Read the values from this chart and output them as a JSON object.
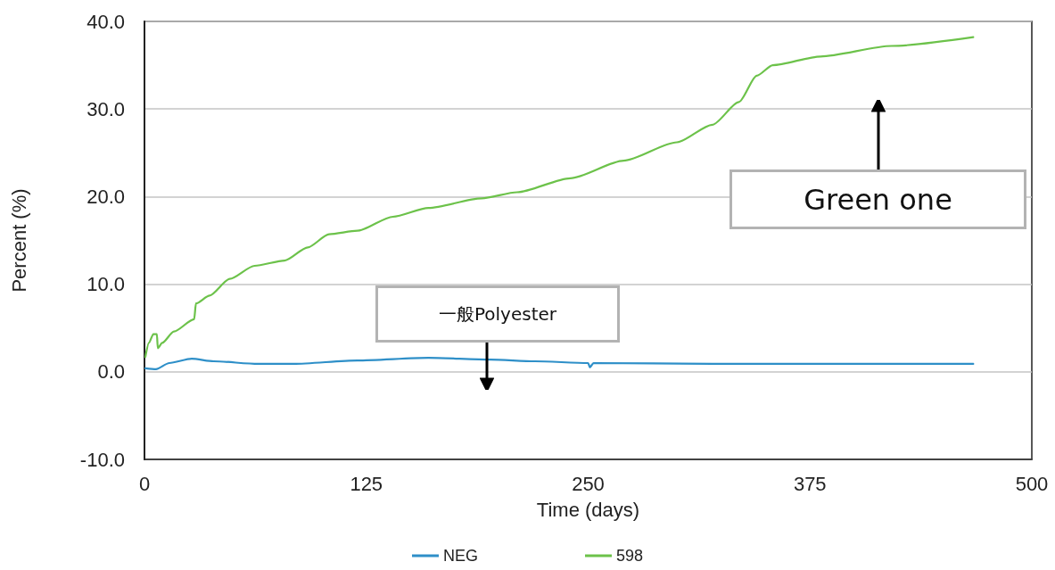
{
  "chart_data": {
    "type": "line",
    "xlabel": "Time (days)",
    "ylabel": "Percent (%)",
    "xlim": [
      0,
      500
    ],
    "xticks": [
      0,
      125,
      250,
      375,
      500
    ],
    "ylim": [
      -10,
      40
    ],
    "yticks": [
      {
        "value": -10,
        "label": "-10.0"
      },
      {
        "value": 0,
        "label": "0.0"
      },
      {
        "value": 10,
        "label": "10.0"
      },
      {
        "value": 20,
        "label": "20.0"
      },
      {
        "value": 30,
        "label": "30.0"
      },
      {
        "value": 40,
        "label": "40.0"
      }
    ],
    "grid": "y",
    "legend": "bottom",
    "marker": "none",
    "line_style": "solid",
    "annotations": [
      "一般Polyester",
      "Green one"
    ],
    "series": [
      {
        "name": "NEG",
        "color": "#2e8fc8",
        "x": [
          0.5,
          6.5,
          14,
          26.6,
          39,
          64,
          84,
          120,
          160,
          195,
          220,
          250,
          251,
          253,
          320,
          467
        ],
        "values": [
          0.4,
          0.3,
          1.0,
          1.5,
          1.2,
          0.9,
          0.9,
          1.3,
          1.6,
          1.4,
          1.2,
          1.0,
          0.5,
          1.0,
          0.9,
          0.9
        ]
      },
      {
        "name": "598",
        "color": "#6cc24a",
        "x": [
          0.5,
          2.5,
          5,
          7,
          7.5,
          10,
          16.6,
          28,
          29,
          36.7,
          48,
          62,
          79,
          92,
          104,
          120,
          140,
          160,
          190,
          210,
          240,
          270,
          300,
          320,
          335,
          345,
          354,
          381,
          421,
          467
        ],
        "values": [
          1.7,
          3.3,
          4.3,
          4.3,
          2.7,
          3.3,
          4.6,
          6.0,
          7.8,
          8.7,
          10.6,
          12.1,
          12.7,
          14.2,
          15.7,
          16.1,
          17.7,
          18.7,
          19.8,
          20.5,
          22.1,
          24.1,
          26.2,
          28.2,
          30.8,
          33.8,
          35.0,
          36.0,
          37.2,
          38.2
        ]
      }
    ]
  }
}
